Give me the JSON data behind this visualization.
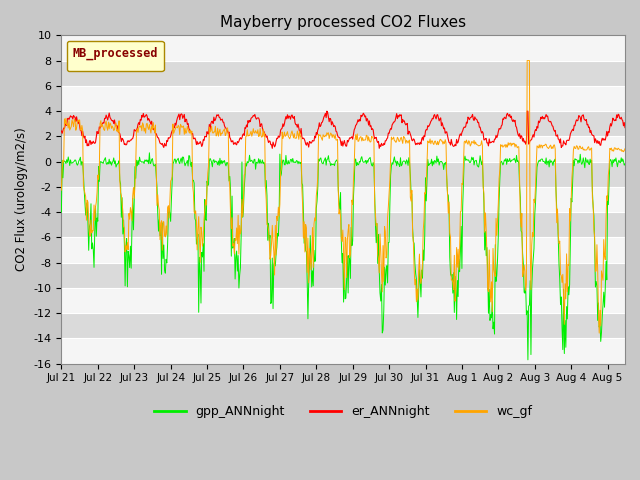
{
  "title": "Mayberry processed CO2 Fluxes",
  "ylabel": "CO2 Flux (urology/m2/s)",
  "xlabel": "",
  "ylim": [
    -16,
    10
  ],
  "yticks": [
    -16,
    -14,
    -12,
    -10,
    -8,
    -6,
    -4,
    -2,
    0,
    2,
    4,
    6,
    8,
    10
  ],
  "legend_label": "MB_processed",
  "legend_items": [
    "gpp_ANNnight",
    "er_ANNnight",
    "wc_gf"
  ],
  "line_colors": {
    "gpp_ANNnight": "#00ee00",
    "er_ANNnight": "#ff0000",
    "wc_gf": "#ffa500"
  },
  "n_days": 15.5,
  "points_per_day": 48,
  "xticklabels": [
    "Jul 21",
    "Jul 22",
    "Jul 23",
    "Jul 24",
    "Jul 25",
    "Jul 26",
    "Jul 27",
    "Jul 28",
    "Jul 29",
    "Jul 30",
    "Jul 31",
    "Aug 1",
    "Aug 2",
    "Aug 3",
    "Aug 4",
    "Aug 5"
  ],
  "xtick_positions": [
    0,
    48,
    96,
    144,
    192,
    240,
    288,
    336,
    384,
    432,
    480,
    528,
    576,
    624,
    672,
    720
  ],
  "fig_bg": "#c8c8c8",
  "plot_bg": "#e0e0e0",
  "band_light": "#e8e8e8",
  "band_dark": "#d0d0d0"
}
